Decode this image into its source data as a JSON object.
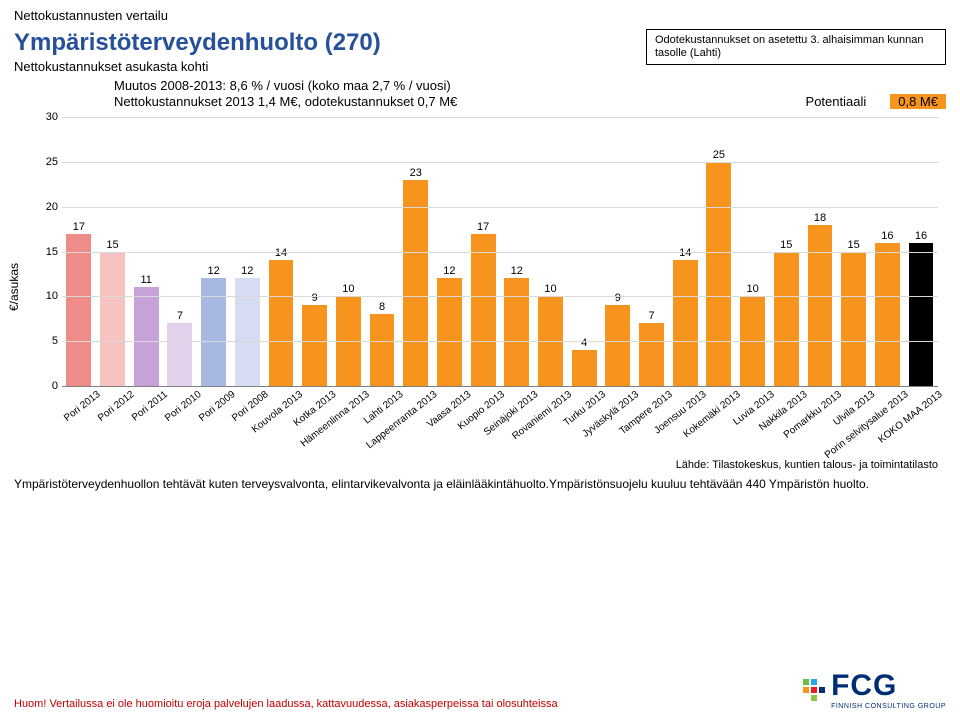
{
  "page": {
    "top_line": "Nettokustannusten vertailu",
    "main_title": "Ympäristöterveydenhuolto (270)",
    "subtitle": "Nettokustannukset asukasta kohti",
    "note_box": "Odotekustannukset on asetettu 3. alhaisimman kunnan tasolle (Lahti)",
    "info_line1": "Muutos 2008-2013: 8,6 % / vuosi (koko maa 2,7 % / vuosi)",
    "info_line2": "Nettokustannukset 2013 1,4 M€, odotekustannukset 0,7 M€",
    "potentiaali_label": "Potentiaali",
    "potentiaali_value": "0,8 M€",
    "y_axis_label": "€/asukas",
    "source": "Lähde: Tilastokeskus, kuntien talous- ja toimintatilasto",
    "description": "Ympäristöterveydenhuollon tehtävät kuten terveysvalvonta, elintarvikevalvonta ja eläinlääkintähuolto.Ympäristönsuojelu kuuluu tehtävään 440 Ympäristön huolto.",
    "disclaimer": "Huom! Vertailussa ei ole huomioitu eroja palvelujen laadussa, kattavuudessa, asiakasperpeissa tai olosuhteissa",
    "logo_text": "FCG",
    "logo_sub": "FINNISH CONSULTING GROUP"
  },
  "chart": {
    "type": "bar",
    "ylim": [
      0,
      30
    ],
    "ytick_step": 5,
    "yticks": [
      0,
      5,
      10,
      15,
      20,
      25,
      30
    ],
    "grid_color": "#d9d9d9",
    "background_color": "#ffffff",
    "label_fontsize": 11,
    "bar_width_pct": 74,
    "bars": [
      {
        "label": "Pori 2013",
        "value": 17,
        "color": "#f08c87"
      },
      {
        "label": "Pori 2012",
        "value": 15,
        "color": "#f7c3c0"
      },
      {
        "label": "Pori 2011",
        "value": 11,
        "color": "#c7a2d8"
      },
      {
        "label": "Pori 2010",
        "value": 7,
        "color": "#e3d1ec"
      },
      {
        "label": "Pori 2009",
        "value": 12,
        "color": "#a7b9e3"
      },
      {
        "label": "Pori 2008",
        "value": 12,
        "color": "#d6ddf2"
      },
      {
        "label": "Kouvola 2013",
        "value": 14,
        "color": "#f7941d"
      },
      {
        "label": "Kotka 2013",
        "value": 9,
        "color": "#f7941d"
      },
      {
        "label": "Hämeenlinna 2013",
        "value": 10,
        "color": "#f7941d"
      },
      {
        "label": "Lahti 2013",
        "value": 8,
        "color": "#f7941d"
      },
      {
        "label": "Lappeenranta 2013",
        "value": 23,
        "color": "#f7941d"
      },
      {
        "label": "Vaasa 2013",
        "value": 12,
        "color": "#f7941d"
      },
      {
        "label": "Kuopio 2013",
        "value": 17,
        "color": "#f7941d"
      },
      {
        "label": "Seinäjoki 2013",
        "value": 12,
        "color": "#f7941d"
      },
      {
        "label": "Rovaniemi 2013",
        "value": 10,
        "color": "#f7941d"
      },
      {
        "label": "Turku 2013",
        "value": 4,
        "color": "#f7941d"
      },
      {
        "label": "Jyväskylä 2013",
        "value": 9,
        "color": "#f7941d"
      },
      {
        "label": "Tampere 2013",
        "value": 7,
        "color": "#f7941d"
      },
      {
        "label": "Joensuu 2013",
        "value": 14,
        "color": "#f7941d"
      },
      {
        "label": "Kokemäki 2013",
        "value": 25,
        "color": "#f7941d"
      },
      {
        "label": "Luvia 2013",
        "value": 10,
        "color": "#f7941d"
      },
      {
        "label": "Nakkila 2013",
        "value": 15,
        "color": "#f7941d"
      },
      {
        "label": "Pomarkku 2013",
        "value": 18,
        "color": "#f7941d"
      },
      {
        "label": "Ulvila 2013",
        "value": 15,
        "color": "#f7941d"
      },
      {
        "label": "Porin selvitysalue 2013",
        "value": 16,
        "color": "#f7941d"
      },
      {
        "label": "KOKO MAA 2013",
        "value": 16,
        "color": "#000000"
      }
    ]
  }
}
